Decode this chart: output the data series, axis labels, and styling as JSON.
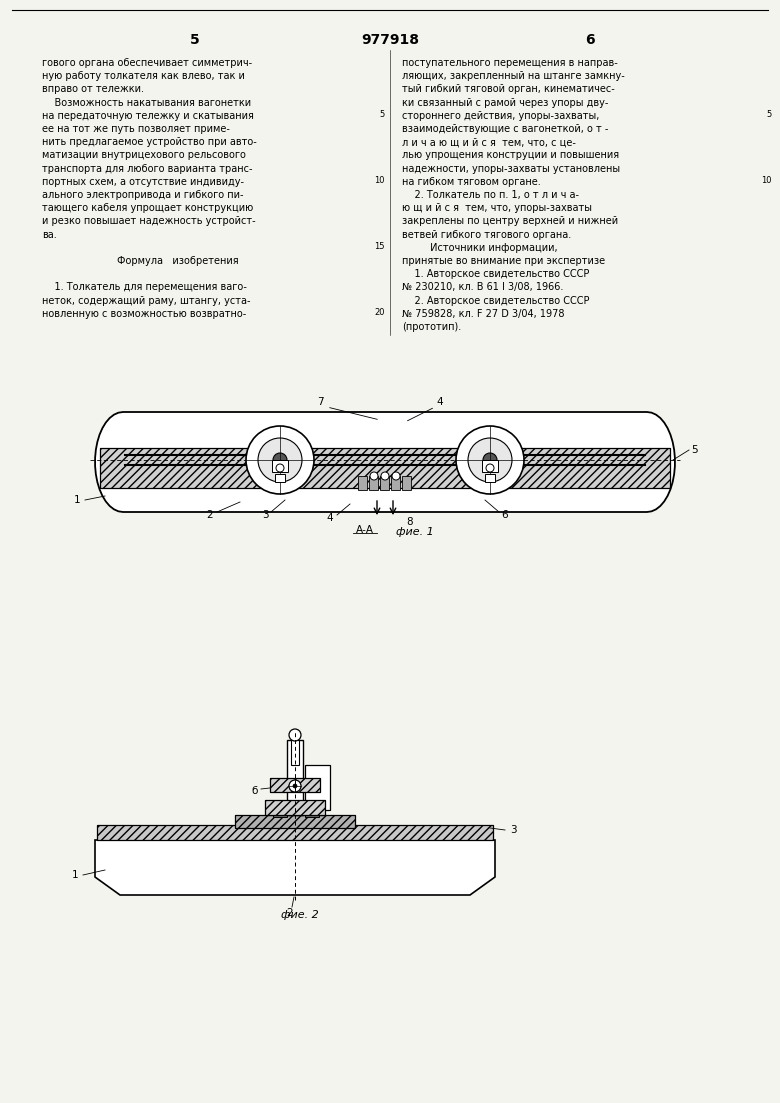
{
  "page_width": 7.8,
  "page_height": 11.03,
  "dpi": 100,
  "bg": "#f4f4ee",
  "header_number": "977918",
  "col1_page_num": "5",
  "col2_page_num": "6",
  "col1_lines": [
    "гового органа обеспечивает симметрич-",
    "ную работу толкателя как влево, так и",
    "вправо от тележки.",
    "    Возможность накатывания вагонетки",
    "на передаточную тележку и скатывания",
    "ее на тот же путь позволяет приме-",
    "нить предлагаемое устройство при авто-",
    "матизации внутрицехового рельсового",
    "транспорта для любого варианта транс-",
    "портных схем, а отсутствие индивиду-",
    "ального электропривода и гибкого пи-",
    "тающего кабеля упрощает конструкцию",
    "и резко повышает надежность устройст-",
    "ва.",
    "",
    "    Формула   изобретения",
    "",
    "    1. Толкатель для перемещения вагo-",
    "неток, содержащий раму, штангу, уста-",
    "новленную с возможностью возвратно-"
  ],
  "col2_lines": [
    "поступательного перемещения в направ-",
    "ляющих, закрепленный на штанге замкну-",
    "тый гибкий тяговой орган, кинематичес-",
    "ки связанный с рамой через упоры дву-",
    "стороннего действия, упоры-захваты,",
    "взаимодействующие с вагонеткой, о т -",
    "л и ч а ю щ и й с я  тем, что, с це-",
    "лью упрощения конструции и повышения",
    "надежности, упоры-захваты установлены",
    "на гибком тяговом органе.",
    "    2. Толкатель по п. 1, о т л и ч а-",
    "ю щ и й с я  тем, что, упоры-захваты",
    "закреплены по центру верхней и нижней",
    "ветвей гибкого тягового органа.",
    "         Источники информации,",
    "принятые во внимание при экспертизе",
    "    1. Авторское свидетельство СССР",
    "№ 230210, кл. В 61 I 3/08, 1966.",
    "    2. Авторское свидетельство СССР",
    "№ 759828, кл. F 27 D 3/04, 1978",
    "(прототип)."
  ],
  "fig1_caption": "фие. 1",
  "fig1_aa_label": "А-А",
  "fig2_caption": "фие. 2"
}
